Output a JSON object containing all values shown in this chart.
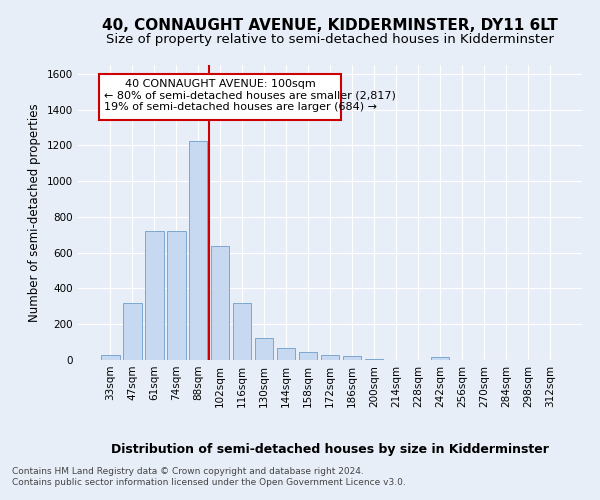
{
  "title": "40, CONNAUGHT AVENUE, KIDDERMINSTER, DY11 6LT",
  "subtitle": "Size of property relative to semi-detached houses in Kidderminster",
  "xlabel": "Distribution of semi-detached houses by size in Kidderminster",
  "ylabel": "Number of semi-detached properties",
  "categories": [
    "33sqm",
    "47sqm",
    "61sqm",
    "74sqm",
    "88sqm",
    "102sqm",
    "116sqm",
    "130sqm",
    "144sqm",
    "158sqm",
    "172sqm",
    "186sqm",
    "200sqm",
    "214sqm",
    "228sqm",
    "242sqm",
    "256sqm",
    "270sqm",
    "284sqm",
    "298sqm",
    "312sqm"
  ],
  "values": [
    30,
    320,
    720,
    720,
    1225,
    640,
    320,
    125,
    65,
    45,
    30,
    20,
    5,
    0,
    0,
    15,
    0,
    0,
    0,
    0,
    0
  ],
  "bar_color": "#c6d9f0",
  "bar_edge_color": "#7ba7d0",
  "red_line_color": "#cc0000",
  "red_line_x": 5.0,
  "annotation_text1": "40 CONNAUGHT AVENUE: 100sqm",
  "annotation_text2": "← 80% of semi-detached houses are smaller (2,817)",
  "annotation_text3": "19% of semi-detached houses are larger (684) →",
  "annotation_box_facecolor": "#ffffff",
  "annotation_box_edgecolor": "#cc0000",
  "ylim": [
    0,
    1650
  ],
  "yticks": [
    0,
    200,
    400,
    600,
    800,
    1000,
    1200,
    1400,
    1600
  ],
  "bg_color": "#e8eef8",
  "grid_color": "#ffffff",
  "footer_text": "Contains HM Land Registry data © Crown copyright and database right 2024.\nContains public sector information licensed under the Open Government Licence v3.0.",
  "title_fontsize": 11,
  "subtitle_fontsize": 9.5,
  "annotation_fontsize": 8,
  "ylabel_fontsize": 8.5,
  "xlabel_fontsize": 9,
  "tick_fontsize": 7.5,
  "footer_fontsize": 6.5
}
